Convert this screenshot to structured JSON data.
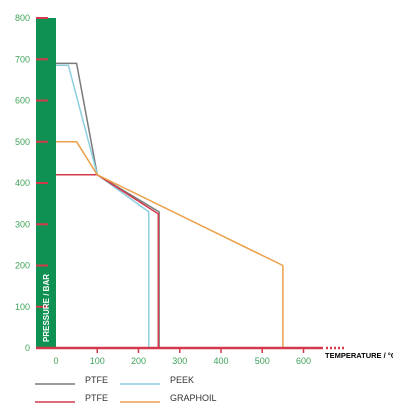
{
  "chart_data": {
    "type": "line",
    "xlabel": "TEMPERATURE / °C",
    "ylabel": "PRESSURE / BAR",
    "xlim": [
      -50,
      650
    ],
    "ylim": [
      0,
      800
    ],
    "xticks": [
      0,
      100,
      200,
      300,
      400,
      500,
      600
    ],
    "yticks": [
      0,
      100,
      200,
      300,
      400,
      500,
      600,
      700,
      800
    ],
    "grid": false,
    "legend_position": "bottom",
    "series": [
      {
        "name": "PTFE",
        "color": "#7a7a7a",
        "x": [
          0,
          50,
          100,
          250,
          250
        ],
        "y": [
          690,
          690,
          420,
          330,
          0
        ]
      },
      {
        "name": "PEEK",
        "color": "#8ccfe0",
        "x": [
          0,
          30,
          100,
          225,
          225
        ],
        "y": [
          685,
          685,
          420,
          330,
          0
        ]
      },
      {
        "name": "PTFE",
        "color": "#d23a4b",
        "x": [
          0,
          100,
          248,
          248
        ],
        "y": [
          420,
          420,
          325,
          0
        ]
      },
      {
        "name": "GRAPHOIL",
        "color": "#eba04a",
        "x": [
          0,
          50,
          100,
          550,
          550
        ],
        "y": [
          500,
          500,
          420,
          200,
          0
        ]
      }
    ],
    "axis_colors": {
      "y_axis_bar": "#0f9153",
      "y_ticks": "#d23a4b",
      "x_axis_line": "#d23a4b",
      "tick_text": "#3fa35a"
    }
  }
}
